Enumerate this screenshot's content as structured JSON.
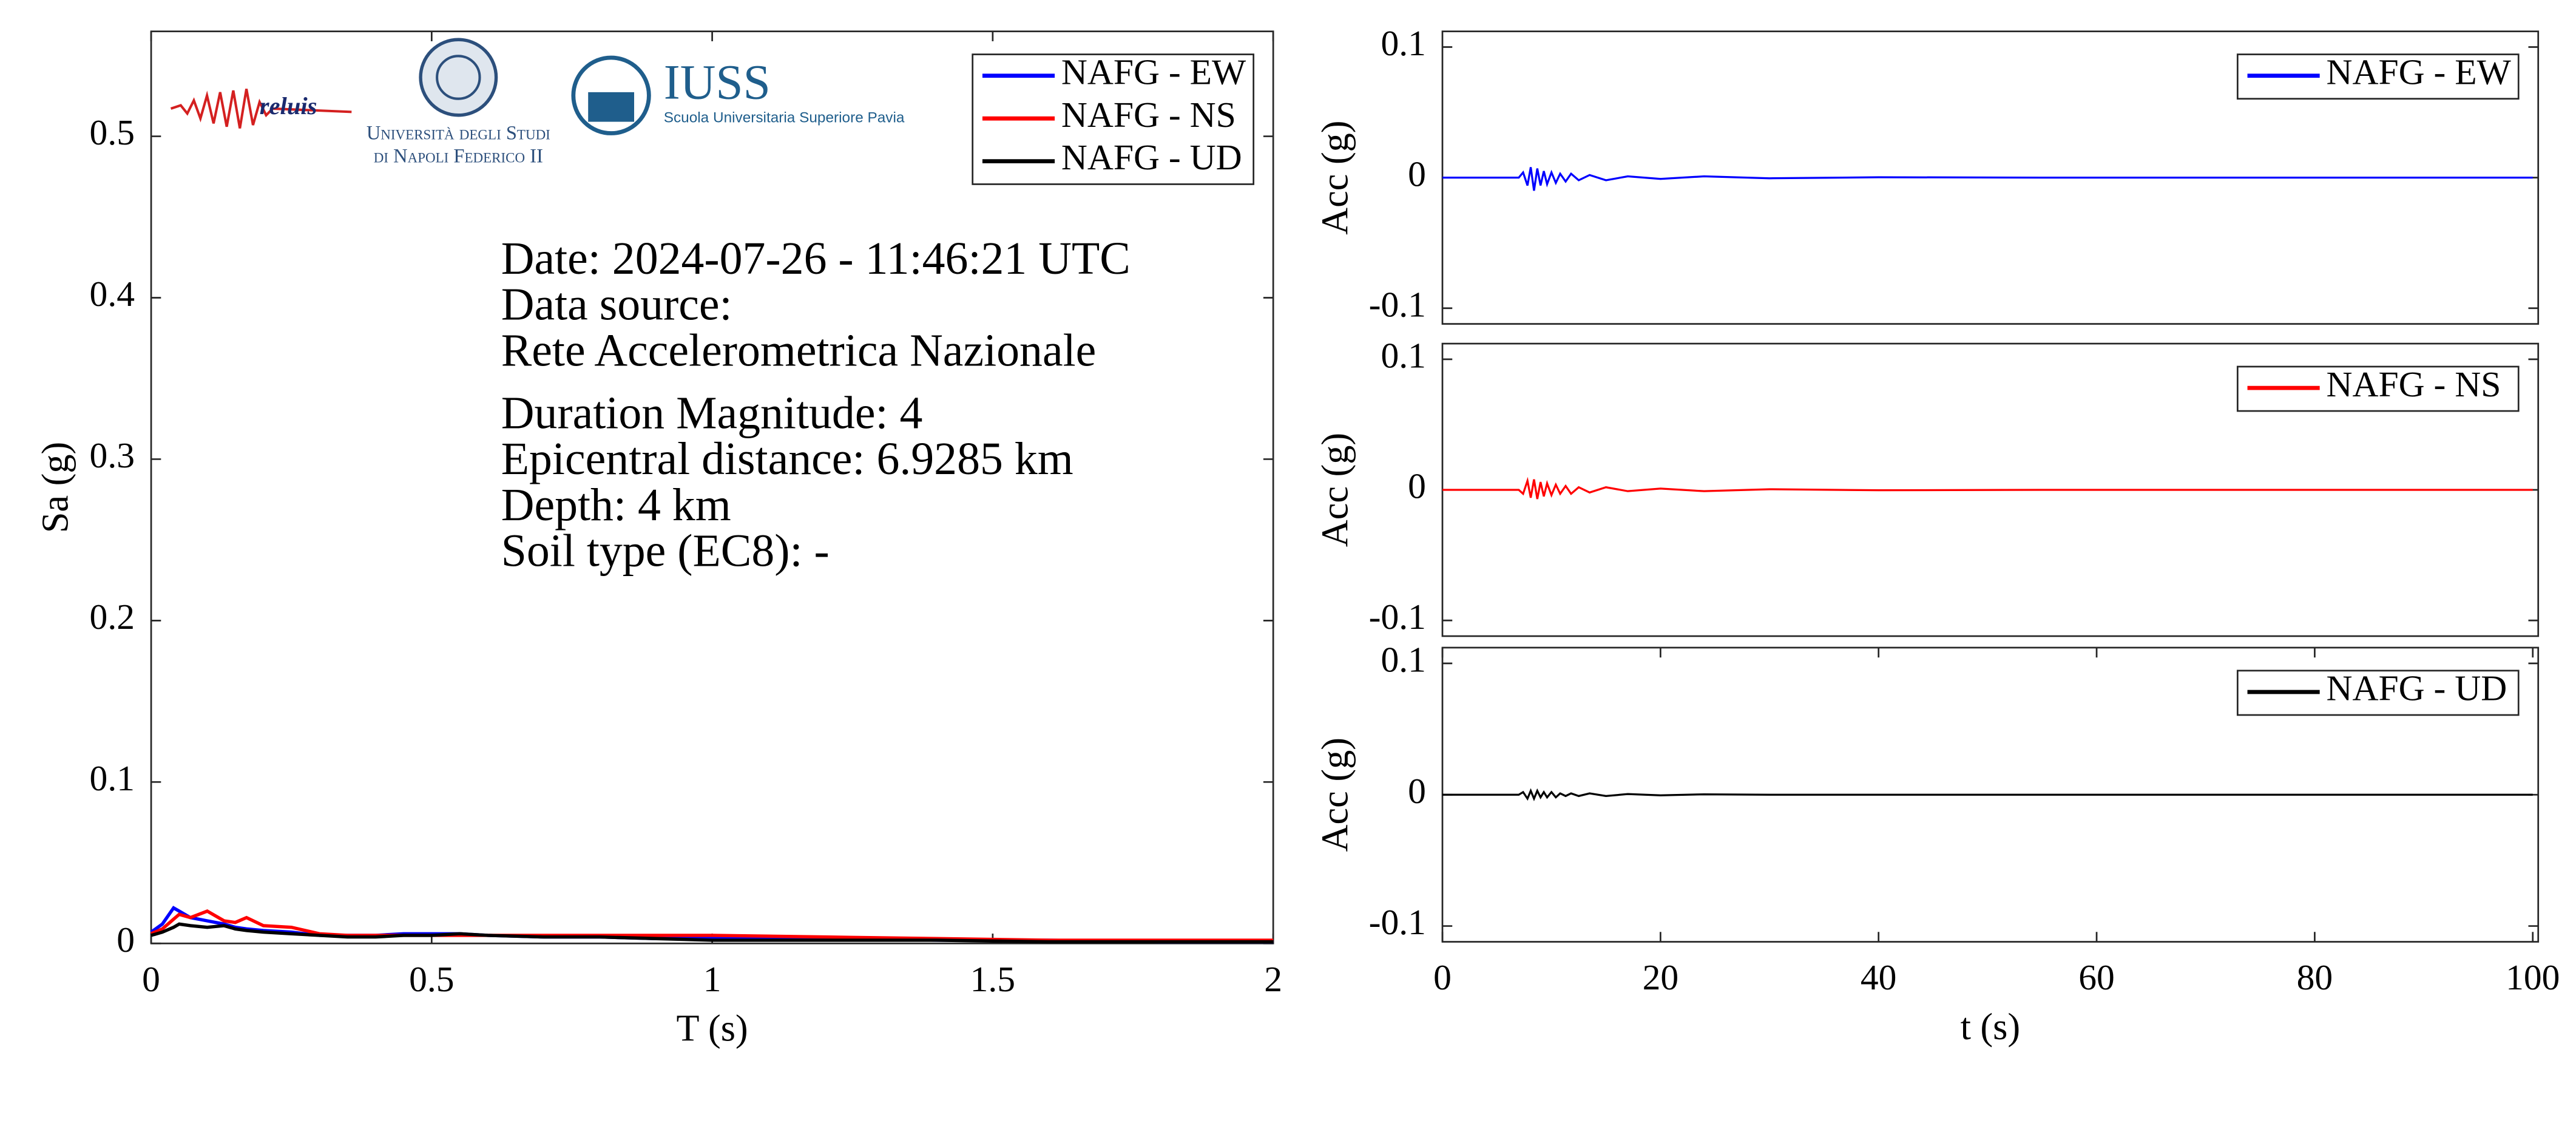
{
  "chart_data": [
    {
      "type": "line",
      "xlabel": "T (s)",
      "ylabel": "Sa (g)",
      "x": [
        0,
        0.02,
        0.04,
        0.05,
        0.07,
        0.1,
        0.13,
        0.15,
        0.17,
        0.2,
        0.25,
        0.3,
        0.35,
        0.4,
        0.45,
        0.5,
        0.55,
        0.6,
        0.7,
        0.8,
        0.9,
        1.0,
        1.2,
        1.4,
        1.6,
        1.8,
        2.0
      ],
      "series": [
        {
          "name": "NAFG - EW",
          "color": "#0000ff",
          "values": [
            0.007,
            0.012,
            0.022,
            0.02,
            0.016,
            0.014,
            0.012,
            0.01,
            0.009,
            0.008,
            0.007,
            0.005,
            0.005,
            0.005,
            0.006,
            0.006,
            0.006,
            0.005,
            0.004,
            0.004,
            0.003,
            0.003,
            0.003,
            0.002,
            0.002,
            0.001,
            0.001
          ]
        },
        {
          "name": "NAFG - NS",
          "color": "#ff0000",
          "values": [
            0.006,
            0.009,
            0.015,
            0.018,
            0.016,
            0.02,
            0.014,
            0.013,
            0.016,
            0.011,
            0.01,
            0.006,
            0.005,
            0.005,
            0.005,
            0.005,
            0.005,
            0.005,
            0.005,
            0.005,
            0.005,
            0.005,
            0.004,
            0.003,
            0.002,
            0.002,
            0.002
          ]
        },
        {
          "name": "NAFG - UD",
          "color": "#000000",
          "values": [
            0.005,
            0.007,
            0.01,
            0.012,
            0.011,
            0.01,
            0.011,
            0.009,
            0.008,
            0.007,
            0.006,
            0.005,
            0.004,
            0.004,
            0.005,
            0.005,
            0.006,
            0.005,
            0.004,
            0.004,
            0.003,
            0.002,
            0.002,
            0.002,
            0.001,
            0.001,
            0.001
          ]
        }
      ],
      "xlim": [
        0,
        2
      ],
      "xticks": [
        0,
        0.5,
        1,
        1.5,
        2
      ],
      "ylim": [
        0,
        0.565
      ],
      "yticks": [
        0,
        0.1,
        0.2,
        0.3,
        0.4,
        0.5
      ],
      "legend": "upper right",
      "annotations": [
        "Date: 2024-07-26 - 11:46:21 UTC",
        "Data source:",
        "Rete Accelerometrica Nazionale",
        "Duration Magnitude: 4",
        "Epicentral distance: 6.9285 km",
        "Depth: 4 km",
        "Soil type (EC8): -"
      ]
    },
    {
      "type": "line",
      "ylabel": "Acc (g)",
      "x": [
        0,
        7,
        7.4,
        7.8,
        8.1,
        8.4,
        8.7,
        9,
        9.3,
        9.6,
        10,
        10.4,
        10.8,
        11.3,
        11.8,
        12.5,
        13.5,
        15,
        17,
        20,
        24,
        30,
        40,
        55,
        70,
        85,
        100
      ],
      "series": [
        {
          "name": "NAFG - EW",
          "color": "#0000ff",
          "values": [
            0,
            0,
            0.004,
            -0.006,
            0.008,
            -0.01,
            0.007,
            -0.006,
            0.005,
            -0.005,
            0.004,
            -0.004,
            0.003,
            -0.003,
            0.003,
            -0.002,
            0.002,
            -0.002,
            0.001,
            -0.001,
            0.001,
            -0.0005,
            0.0003,
            0,
            0,
            0,
            0
          ]
        }
      ],
      "xlim": [
        0,
        100.5
      ],
      "ylim": [
        -0.112,
        0.112
      ],
      "yticks": [
        -0.1,
        0,
        0.1
      ],
      "legend": "upper right"
    },
    {
      "type": "line",
      "ylabel": "Acc (g)",
      "x": [
        0,
        7,
        7.4,
        7.8,
        8.1,
        8.4,
        8.7,
        9,
        9.3,
        9.6,
        10,
        10.4,
        10.8,
        11.3,
        11.8,
        12.5,
        13.5,
        15,
        17,
        20,
        24,
        30,
        40,
        55,
        70,
        85,
        100
      ],
      "series": [
        {
          "name": "NAFG - NS",
          "color": "#ff0000",
          "values": [
            0,
            0,
            -0.003,
            0.007,
            -0.006,
            0.008,
            -0.007,
            0.006,
            -0.005,
            0.005,
            -0.004,
            0.004,
            -0.003,
            0.003,
            -0.003,
            0.002,
            -0.002,
            0.002,
            -0.001,
            0.001,
            -0.001,
            0.0005,
            -0.0003,
            0,
            0,
            0,
            0
          ]
        }
      ],
      "xlim": [
        0,
        100.5
      ],
      "ylim": [
        -0.112,
        0.112
      ],
      "yticks": [
        -0.1,
        0,
        0.1
      ],
      "legend": "upper right"
    },
    {
      "type": "line",
      "xlabel": "t (s)",
      "ylabel": "Acc (g)",
      "x": [
        0,
        7,
        7.4,
        7.8,
        8.1,
        8.4,
        8.7,
        9,
        9.3,
        9.6,
        10,
        10.4,
        10.8,
        11.3,
        11.8,
        12.5,
        13.5,
        15,
        17,
        20,
        24,
        30,
        40,
        55,
        70,
        85,
        100
      ],
      "series": [
        {
          "name": "NAFG - UD",
          "color": "#000000",
          "values": [
            0,
            0,
            0.002,
            -0.003,
            0.003,
            -0.003,
            0.003,
            -0.002,
            0.002,
            -0.002,
            0.002,
            -0.002,
            0.001,
            -0.001,
            0.001,
            -0.001,
            0.001,
            -0.001,
            0.0005,
            -0.0005,
            0.0003,
            0,
            0,
            0,
            0,
            0,
            0
          ]
        }
      ],
      "xlim": [
        0,
        100.5
      ],
      "xticks": [
        0,
        20,
        40,
        60,
        80,
        100
      ],
      "ylim": [
        -0.112,
        0.112
      ],
      "yticks": [
        -0.1,
        0,
        0.1
      ],
      "legend": "upper right"
    }
  ],
  "logos": {
    "reluis": "reluis",
    "unina": [
      "Università degli Studi",
      "di Napoli Federico II"
    ],
    "iuss": "IUSS",
    "iuss_sub": "Scuola Universitaria Superiore Pavia"
  }
}
